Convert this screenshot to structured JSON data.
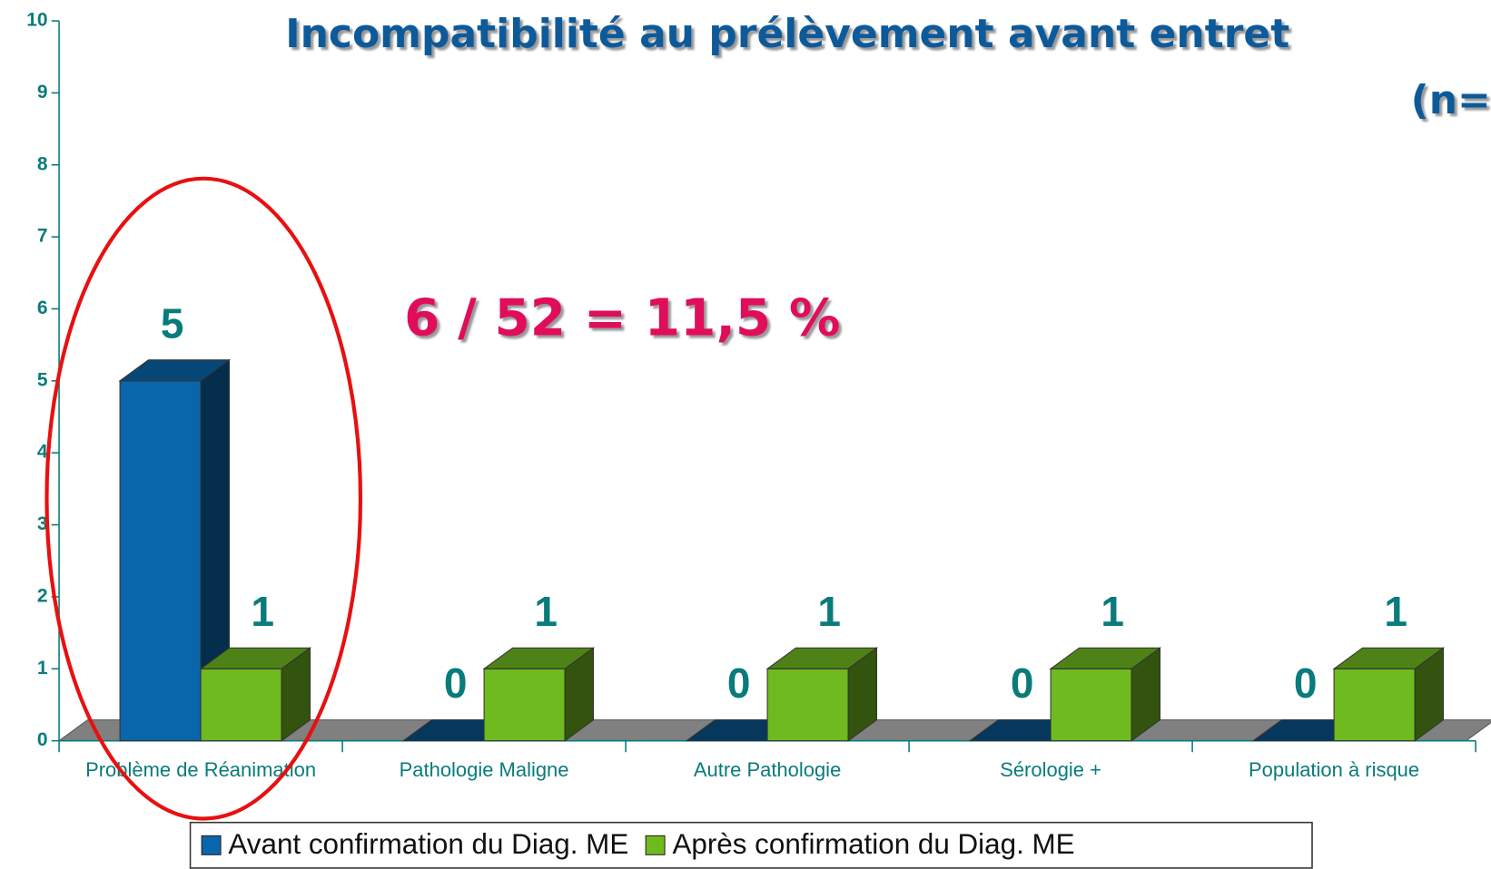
{
  "chart_data": {
    "type": "bar3d",
    "title": "Incompatibilité au prélèvement avant entret",
    "subtitle": "(n=",
    "annotation": "6 / 52 = 11,5 %",
    "categories": [
      "Problème de Réanimation",
      "Pathologie Maligne",
      "Autre Pathologie",
      "Sérologie +",
      "Population à risque"
    ],
    "series": [
      {
        "name": "Avant confirmation du Diag. ME",
        "color": "#0a66aa",
        "values": [
          5,
          0,
          0,
          0,
          0
        ]
      },
      {
        "name": "Après confirmation du Diag. ME",
        "color": "#6fba1f",
        "values": [
          1,
          1,
          1,
          1,
          1
        ]
      }
    ],
    "ylim": [
      0,
      10
    ],
    "yticks": [
      0,
      1,
      2,
      3,
      4,
      5,
      6,
      7,
      8,
      9,
      10
    ]
  }
}
